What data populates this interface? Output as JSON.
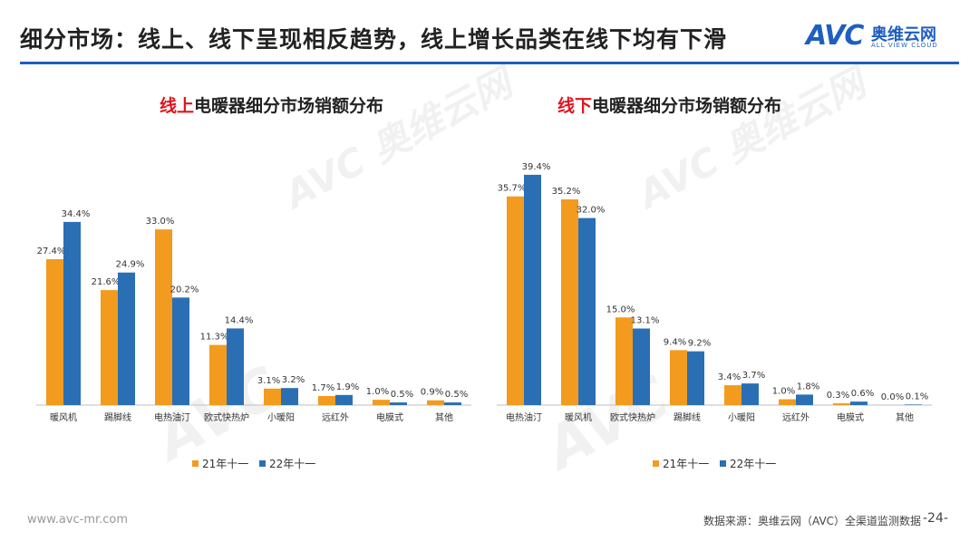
{
  "page": {
    "title": "细分市场：线上、线下呈现相反趋势，线上增长品类在线下均有下滑",
    "logo_text": "AVC",
    "logo_cn": "奥维云网",
    "logo_en": "ALL VIEW CLOUD",
    "footer_url": "www.avc-mr.com",
    "footer_source": "数据来源：奥维云网（AVC）全渠道监测数据",
    "page_number": "-24-"
  },
  "colors": {
    "series_21": "#f29b1e",
    "series_22": "#2a6fb4",
    "accent": "#1f5fbf",
    "highlight": "#e0141e"
  },
  "chart_data": [
    {
      "type": "bar",
      "title_highlight": "线上",
      "title_rest": "电暖器细分市场销额分布",
      "categories": [
        "暖风机",
        "踢脚线",
        "电热油汀",
        "欧式快热炉",
        "小暖阳",
        "远红外",
        "电膜式",
        "其他"
      ],
      "series": [
        {
          "name": "21年十一",
          "values": [
            27.4,
            21.6,
            33.0,
            11.3,
            3.1,
            1.7,
            1.0,
            0.9
          ]
        },
        {
          "name": "22年十一",
          "values": [
            34.4,
            24.9,
            20.2,
            14.4,
            3.2,
            1.9,
            0.5,
            0.5
          ]
        }
      ],
      "ylim": [
        0,
        40
      ],
      "value_format": "percent",
      "legend": "bottom"
    },
    {
      "type": "bar",
      "title_highlight": "线下",
      "title_rest": "电暖器细分市场销额分布",
      "categories": [
        "电热油汀",
        "暖风机",
        "欧式快热炉",
        "踢脚线",
        "小暖阳",
        "远红外",
        "电膜式",
        "其他"
      ],
      "series": [
        {
          "name": "21年十一",
          "values": [
            35.7,
            35.2,
            15.0,
            9.4,
            3.4,
            1.0,
            0.3,
            0.0
          ]
        },
        {
          "name": "22年十一",
          "values": [
            39.4,
            32.0,
            13.1,
            9.2,
            3.7,
            1.8,
            0.6,
            0.1
          ]
        }
      ],
      "ylim": [
        0,
        40
      ],
      "value_format": "percent",
      "legend": "bottom"
    }
  ]
}
